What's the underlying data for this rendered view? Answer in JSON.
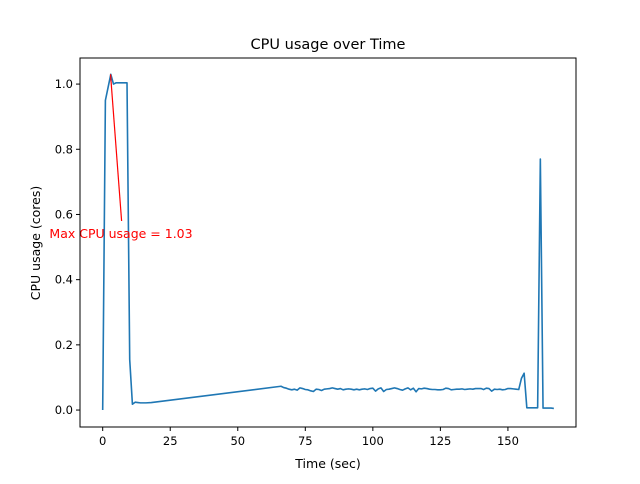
{
  "chart_data": {
    "type": "line",
    "title": "CPU usage over Time",
    "xlabel": "Time (sec)",
    "ylabel": "CPU usage (cores)",
    "xlim": [
      -8.4,
      175.2
    ],
    "ylim": [
      -0.052,
      1.08
    ],
    "xticks": [
      0,
      25,
      50,
      75,
      100,
      125,
      150
    ],
    "xtick_labels": [
      "0",
      "25",
      "50",
      "75",
      "100",
      "125",
      "150"
    ],
    "yticks": [
      0.0,
      0.2,
      0.4,
      0.6,
      0.8,
      1.0
    ],
    "ytick_labels": [
      "0.0",
      "0.2",
      "0.4",
      "0.6",
      "0.8",
      "1.0"
    ],
    "grid": false,
    "line_color": "#1f77b4",
    "annotation": {
      "text": "Max CPU usage = 1.03",
      "color": "#ff0000",
      "point": [
        2.9,
        1.03
      ],
      "text_anchor": [
        7.0,
        0.58
      ]
    },
    "series": [
      {
        "x": [
          0,
          1,
          2,
          3,
          4,
          5,
          6,
          7,
          8,
          9,
          10,
          11,
          12,
          13,
          14,
          15,
          16,
          18,
          66,
          67,
          68,
          69,
          70,
          71,
          72,
          73,
          74,
          75,
          76,
          77,
          78,
          79,
          80,
          81,
          82,
          83,
          84,
          85,
          86,
          87,
          88,
          89,
          90,
          91,
          92,
          93,
          94,
          95,
          96,
          97,
          98,
          99,
          100,
          101,
          102,
          103,
          104,
          105,
          106,
          107,
          108,
          109,
          110,
          111,
          112,
          113,
          114,
          115,
          116,
          117,
          118,
          119,
          120,
          121,
          122,
          123,
          124,
          125,
          126,
          127,
          128,
          129,
          130,
          131,
          132,
          133,
          134,
          135,
          136,
          137,
          138,
          139,
          140,
          141,
          142,
          143,
          144,
          145,
          146,
          147,
          148,
          149,
          150,
          151,
          152,
          153,
          154,
          155,
          156,
          157,
          158,
          159,
          160,
          161,
          162,
          163,
          164,
          165,
          166,
          167
        ],
        "y": [
          0.0,
          0.95,
          0.99,
          1.03,
          1.0,
          1.004,
          1.004,
          1.004,
          1.004,
          1.004,
          0.155,
          0.018,
          0.024,
          0.023,
          0.022,
          0.022,
          0.022,
          0.023,
          0.073,
          0.069,
          0.067,
          0.064,
          0.062,
          0.064,
          0.061,
          0.068,
          0.066,
          0.063,
          0.062,
          0.059,
          0.057,
          0.064,
          0.063,
          0.06,
          0.064,
          0.065,
          0.066,
          0.068,
          0.066,
          0.064,
          0.066,
          0.062,
          0.064,
          0.065,
          0.064,
          0.062,
          0.064,
          0.062,
          0.064,
          0.065,
          0.063,
          0.066,
          0.067,
          0.058,
          0.065,
          0.068,
          0.057,
          0.063,
          0.064,
          0.066,
          0.068,
          0.066,
          0.063,
          0.061,
          0.065,
          0.068,
          0.062,
          0.067,
          0.056,
          0.066,
          0.065,
          0.067,
          0.066,
          0.064,
          0.063,
          0.063,
          0.062,
          0.062,
          0.063,
          0.067,
          0.066,
          0.062,
          0.063,
          0.064,
          0.064,
          0.065,
          0.063,
          0.064,
          0.065,
          0.064,
          0.066,
          0.066,
          0.066,
          0.063,
          0.067,
          0.066,
          0.058,
          0.064,
          0.063,
          0.064,
          0.062,
          0.063,
          0.066,
          0.066,
          0.065,
          0.064,
          0.063,
          0.097,
          0.113,
          0.007,
          0.007,
          0.007,
          0.007,
          0.007,
          0.77,
          0.006,
          0.006,
          0.006,
          0.006,
          0.005
        ]
      }
    ]
  }
}
